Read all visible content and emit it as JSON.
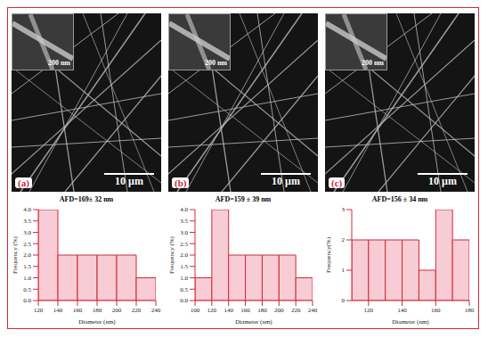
{
  "micrographs": [
    {
      "label": "(a)",
      "inset_scale": "200 nm",
      "scale_bar": "10 μm"
    },
    {
      "label": "(b)",
      "inset_scale": "200 nm",
      "scale_bar": "10 μm"
    },
    {
      "label": "(c)",
      "inset_scale": "200 nm",
      "scale_bar": "10 μm"
    }
  ],
  "chart_data": [
    {
      "type": "histogram",
      "title": "AFD=169± 32 nm",
      "x_label": "Diameter (nm)",
      "y_label": "Frequency (%)",
      "bins": [
        120,
        140,
        160,
        180,
        200,
        220,
        240
      ],
      "counts": [
        4,
        2,
        2,
        2,
        2,
        1
      ],
      "color": "#f8ccd4",
      "xlim": [
        120,
        240
      ],
      "xticks": [
        120,
        140,
        160,
        180,
        200,
        220,
        240
      ],
      "ylim": [
        0,
        4
      ],
      "yticks": [
        {
          "value": 0,
          "label": "0.0"
        },
        {
          "value": 0.5,
          "label": "0.5"
        },
        {
          "value": 1,
          "label": "1.0"
        },
        {
          "value": 1.5,
          "label": "1.5"
        },
        {
          "value": 2,
          "label": "2.0"
        },
        {
          "value": 2.5,
          "label": "2.5"
        },
        {
          "value": 3,
          "label": "3.0"
        },
        {
          "value": 3.5,
          "label": "3.5"
        },
        {
          "value": 4,
          "label": "4.0"
        }
      ]
    },
    {
      "type": "histogram",
      "title": "AFD=159 ± 39 nm",
      "x_label": "Diameter (nm)",
      "y_label": "Frequency (%)",
      "bins": [
        100,
        120,
        140,
        160,
        180,
        200,
        220,
        240
      ],
      "counts": [
        1,
        4,
        2,
        2,
        2,
        2,
        1
      ],
      "color": "#f8ccd4",
      "xlim": [
        100,
        240
      ],
      "xticks": [
        100,
        120,
        140,
        160,
        180,
        200,
        220,
        240
      ],
      "ylim": [
        0,
        4
      ],
      "yticks": [
        {
          "value": 0,
          "label": "0.0"
        },
        {
          "value": 0.5,
          "label": "0.5"
        },
        {
          "value": 1,
          "label": "1.0"
        },
        {
          "value": 1.5,
          "label": "1.5"
        },
        {
          "value": 2,
          "label": "2.0"
        },
        {
          "value": 2.5,
          "label": "2.5"
        },
        {
          "value": 3,
          "label": "3.0"
        },
        {
          "value": 3.5,
          "label": "3.5"
        },
        {
          "value": 4,
          "label": "4.0"
        }
      ]
    },
    {
      "type": "histogram",
      "title": "AFD=156 ± 34 nm",
      "x_label": "Diameter (nm)",
      "y_label": "Frequency(%)",
      "bins": [
        110,
        120,
        130,
        140,
        150,
        160,
        170,
        180
      ],
      "counts": [
        2,
        2,
        2,
        2,
        1,
        3,
        2
      ],
      "color": "#f8ccd4",
      "xlim": [
        110,
        180
      ],
      "xticks": [
        120,
        140,
        160,
        180
      ],
      "ylim": [
        0,
        3
      ],
      "yticks": [
        0,
        1,
        2,
        3
      ]
    }
  ]
}
